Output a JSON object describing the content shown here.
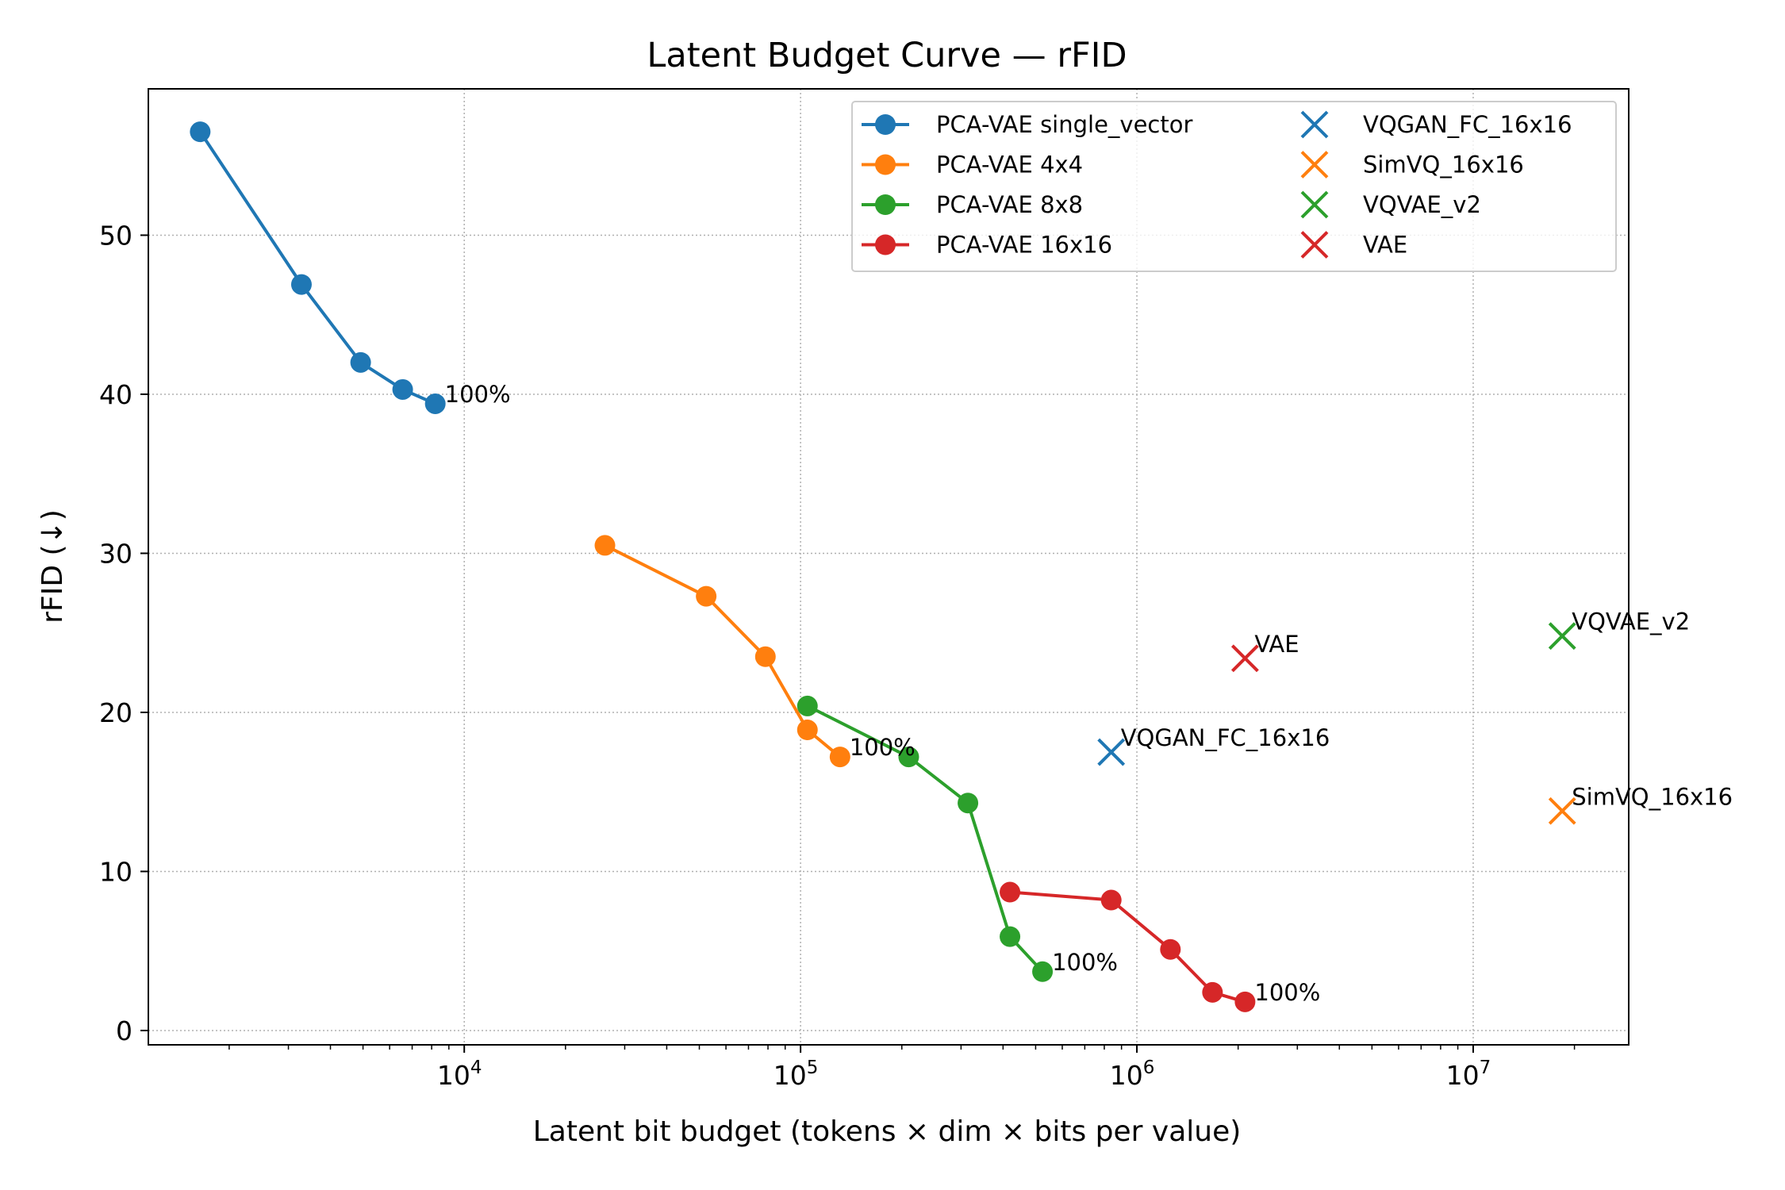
{
  "chart_data": {
    "type": "line",
    "title": "Latent Budget Curve — rFID",
    "xlabel": "Latent bit budget (tokens × dim × bits per value)",
    "ylabel": "rFID (↓)",
    "xscale": "log",
    "xlim": [
      1150,
      29000000
    ],
    "ylim": [
      -0.9,
      59.2
    ],
    "x_ticks": [
      {
        "value": 10000,
        "base": "10",
        "exp": "4"
      },
      {
        "value": 100000,
        "base": "10",
        "exp": "5"
      },
      {
        "value": 1000000,
        "base": "10",
        "exp": "6"
      },
      {
        "value": 10000000,
        "base": "10",
        "exp": "7"
      }
    ],
    "y_ticks": [
      0,
      10,
      20,
      30,
      40,
      50
    ],
    "grid": true,
    "legend_position": "top-right",
    "series": [
      {
        "name": "PCA-VAE single_vector",
        "color": "#1f77b4",
        "marker": "circle",
        "x": [
          1640,
          3280,
          4920,
          6560,
          8200
        ],
        "y": [
          56.5,
          46.9,
          42.0,
          40.3,
          39.4
        ],
        "end_label": "100%"
      },
      {
        "name": "PCA-VAE 4x4",
        "color": "#ff7f0e",
        "marker": "circle",
        "x": [
          26200,
          52400,
          78600,
          104800,
          131000
        ],
        "y": [
          30.5,
          27.3,
          23.5,
          18.9,
          17.2
        ],
        "end_label": "100%"
      },
      {
        "name": "PCA-VAE 8x8",
        "color": "#2ca02c",
        "marker": "circle",
        "x": [
          104800,
          209700,
          314500,
          419400,
          524000
        ],
        "y": [
          20.4,
          17.2,
          14.3,
          5.9,
          3.7
        ],
        "end_label": "100%"
      },
      {
        "name": "PCA-VAE 16x16",
        "color": "#d62728",
        "marker": "circle",
        "x": [
          419400,
          838900,
          1258000,
          1678000,
          2097000
        ],
        "y": [
          8.7,
          8.2,
          5.1,
          2.4,
          1.8
        ],
        "end_label": "100%"
      }
    ],
    "baselines": [
      {
        "name": "VQGAN_FC_16x16",
        "color": "#1f77b4",
        "marker": "x",
        "x": 838900,
        "y": 17.5
      },
      {
        "name": "SimVQ_16x16",
        "color": "#ff7f0e",
        "marker": "x",
        "x": 18400000,
        "y": 13.8
      },
      {
        "name": "VQVAE_v2",
        "color": "#2ca02c",
        "marker": "x",
        "x": 18400000,
        "y": 24.8
      },
      {
        "name": "VAE",
        "color": "#d62728",
        "marker": "x",
        "x": 2097000,
        "y": 23.4
      }
    ]
  }
}
